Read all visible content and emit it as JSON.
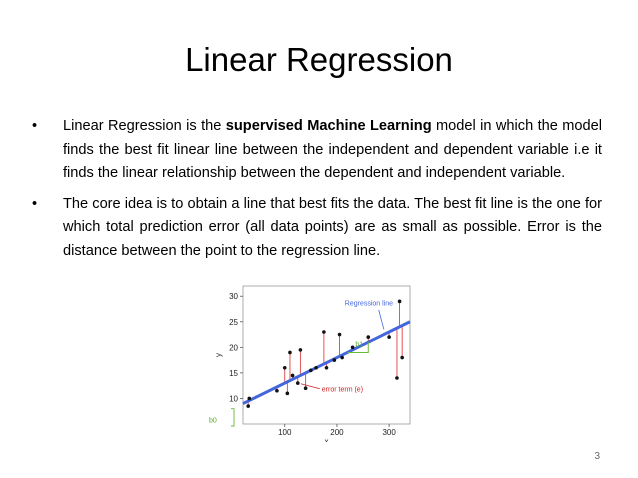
{
  "slide": {
    "title": "Linear Regression",
    "page_number": "3",
    "bullets": [
      {
        "pre": "Linear Regression is the ",
        "bold": "supervised Machine Learning",
        "post": " model in which the model finds the best fit linear line between the independent and dependent variable i.e it finds the linear relationship between the dependent and independent variable."
      },
      {
        "text": "The core idea is to obtain a line that best fits the data. The best fit line is the one for which total prediction error (all data points) are as small as possible. Error is the distance between the point to the regression line."
      }
    ]
  },
  "chart_data": {
    "type": "scatter",
    "xlabel": "x",
    "ylabel": "y",
    "xlim": [
      20,
      340
    ],
    "ylim": [
      5,
      32
    ],
    "xticks": [
      100,
      200,
      300
    ],
    "yticks": [
      10,
      15,
      20,
      25,
      30
    ],
    "regression_line": {
      "intercept": 8.0,
      "slope": 0.05,
      "color": "#4466dd",
      "label": "Regression line"
    },
    "points": [
      [
        30,
        8.5
      ],
      [
        32,
        10
      ],
      [
        85,
        11.5
      ],
      [
        100,
        16
      ],
      [
        105,
        11
      ],
      [
        110,
        19
      ],
      [
        115,
        14.5
      ],
      [
        125,
        13
      ],
      [
        130,
        19.5
      ],
      [
        140,
        12
      ],
      [
        150,
        15.5
      ],
      [
        160,
        16
      ],
      [
        175,
        23
      ],
      [
        180,
        16
      ],
      [
        195,
        17.5
      ],
      [
        205,
        22.5
      ],
      [
        210,
        18
      ],
      [
        230,
        20
      ],
      [
        260,
        22
      ],
      [
        300,
        22
      ],
      [
        315,
        14
      ],
      [
        320,
        29
      ],
      [
        325,
        18
      ]
    ],
    "annotations": [
      {
        "text": "error term (e)",
        "color": "#cc2222"
      },
      {
        "text": "b1",
        "color": "#55aa22"
      },
      {
        "text": "b0",
        "color": "#55aa22"
      }
    ]
  }
}
